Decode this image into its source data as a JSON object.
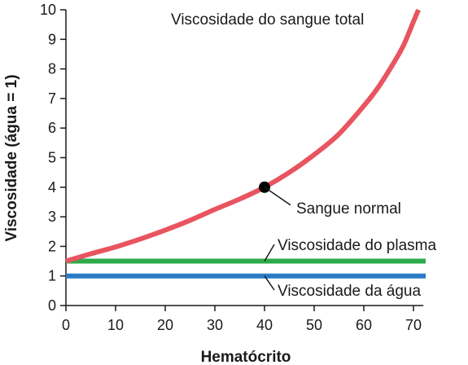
{
  "chart_data": {
    "type": "line",
    "xlabel": "Hematócrito",
    "ylabel": "Viscosidade (água = 1)",
    "xlim": [
      0,
      72
    ],
    "ylim": [
      0,
      10
    ],
    "xticks": [
      0,
      10,
      20,
      30,
      40,
      50,
      60,
      70
    ],
    "yticks": [
      0,
      1,
      2,
      3,
      4,
      5,
      6,
      7,
      8,
      9,
      10
    ],
    "grid": false,
    "series": [
      {
        "name": "Viscosidade do sangue total",
        "color": "#e8545f",
        "x": [
          0,
          5,
          10,
          15,
          20,
          25,
          30,
          35,
          40,
          45,
          50,
          55,
          60,
          63,
          66,
          68,
          70,
          71
        ],
        "y": [
          1.5,
          1.75,
          1.98,
          2.25,
          2.55,
          2.88,
          3.25,
          3.6,
          4.0,
          4.5,
          5.1,
          5.8,
          6.75,
          7.4,
          8.2,
          8.8,
          9.6,
          10.0
        ]
      },
      {
        "name": "Viscosidade do plasma",
        "color": "#2eaa4a",
        "x": [
          0,
          73
        ],
        "y": [
          1.5,
          1.5
        ]
      },
      {
        "name": "Viscosidade da água",
        "color": "#2a7bc4",
        "x": [
          0,
          73
        ],
        "y": [
          1.0,
          1.0
        ]
      }
    ],
    "point": {
      "label": "Sangue normal",
      "x": 40,
      "y": 4.0
    }
  }
}
